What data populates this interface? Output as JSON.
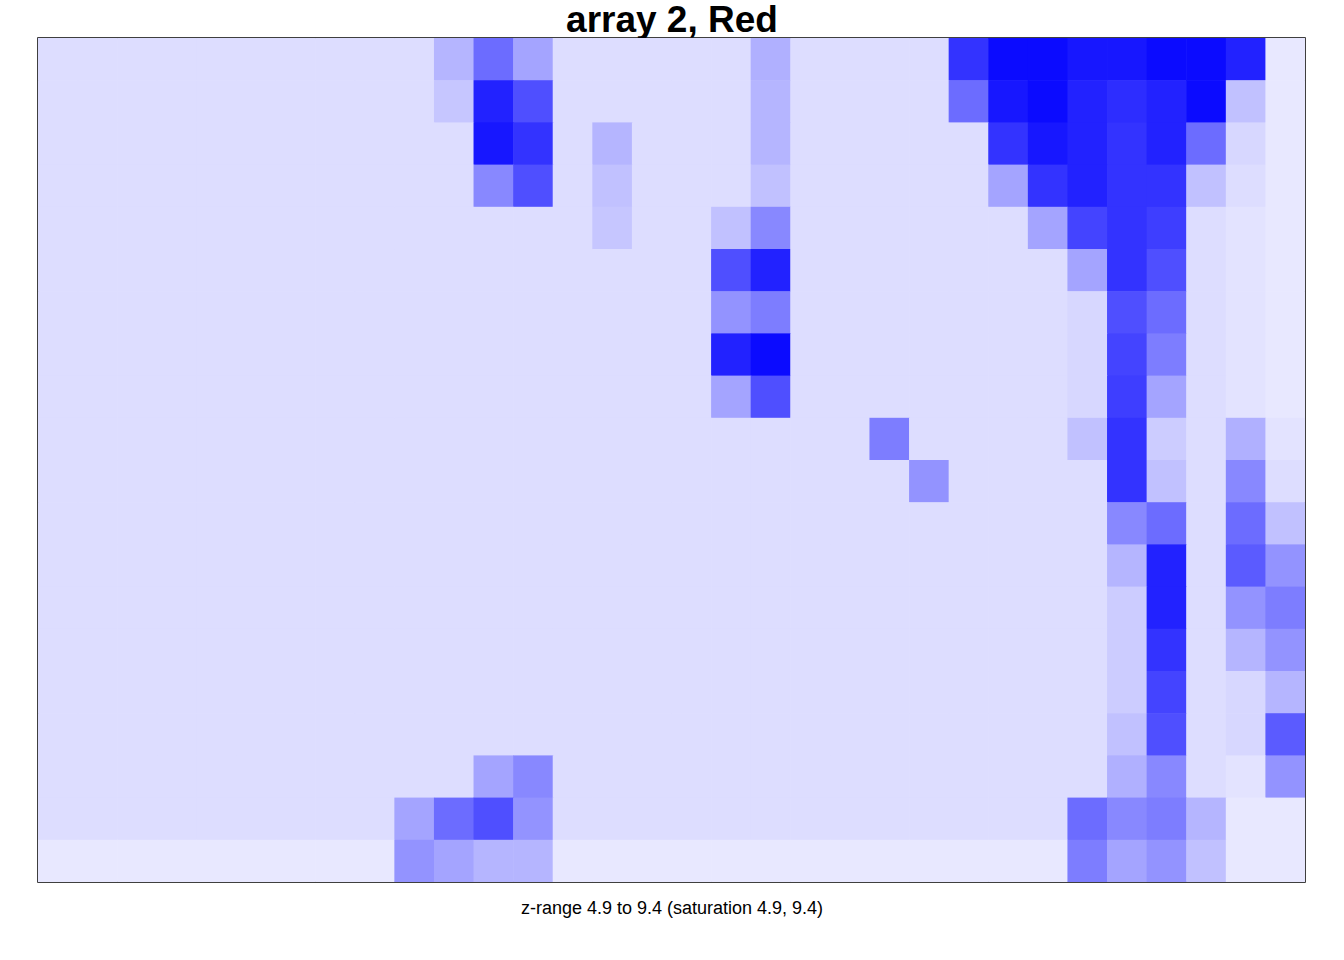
{
  "chart_data": {
    "type": "heatmap",
    "title": "array 2, Red",
    "subtitle": "z-range 4.9 to 9.4 (saturation 4.9, 9.4)",
    "zlim": [
      4.9,
      9.4
    ],
    "saturation": [
      4.9,
      9.4
    ],
    "colors": [
      "#ffffff",
      "#0000ff"
    ],
    "tick_labels": false,
    "cells": [
      [
        5.5,
        5.5,
        5.5,
        5.5,
        5.5,
        5.5,
        5.5,
        5.5,
        5.5,
        5.5,
        6.2,
        7.5,
        6.5,
        5.5,
        5.5,
        5.5,
        5.5,
        5.5,
        6.3,
        5.5,
        5.5,
        5.5,
        5.5,
        8.5,
        9.2,
        9.2,
        9.0,
        9.0,
        9.2,
        9.2,
        8.8,
        5.3
      ],
      [
        5.5,
        5.5,
        5.5,
        5.5,
        5.5,
        5.5,
        5.5,
        5.5,
        5.5,
        5.5,
        5.9,
        8.8,
        8.0,
        5.5,
        5.5,
        5.5,
        5.5,
        5.5,
        6.2,
        5.5,
        5.5,
        5.5,
        5.5,
        7.5,
        9.0,
        9.2,
        8.8,
        8.6,
        8.8,
        9.2,
        6.0,
        5.3
      ],
      [
        5.5,
        5.5,
        5.5,
        5.5,
        5.5,
        5.5,
        5.5,
        5.5,
        5.5,
        5.5,
        5.5,
        9.0,
        8.5,
        5.5,
        6.2,
        5.5,
        5.5,
        5.5,
        6.2,
        5.5,
        5.5,
        5.5,
        5.5,
        5.5,
        8.5,
        9.0,
        8.8,
        8.5,
        8.8,
        7.5,
        5.6,
        5.3
      ],
      [
        5.5,
        5.5,
        5.5,
        5.5,
        5.5,
        5.5,
        5.5,
        5.5,
        5.5,
        5.5,
        5.5,
        7.0,
        8.0,
        5.5,
        6.0,
        5.5,
        5.5,
        5.5,
        6.0,
        5.5,
        5.5,
        5.5,
        5.5,
        5.5,
        6.5,
        8.5,
        8.8,
        8.5,
        8.5,
        6.0,
        5.5,
        5.3
      ],
      [
        5.5,
        5.5,
        5.5,
        5.5,
        5.5,
        5.5,
        5.5,
        5.5,
        5.5,
        5.5,
        5.5,
        5.5,
        5.5,
        5.5,
        5.9,
        5.5,
        5.5,
        6.0,
        7.0,
        5.5,
        5.5,
        5.5,
        5.5,
        5.5,
        5.5,
        6.5,
        8.2,
        8.5,
        8.3,
        5.5,
        5.4,
        5.3
      ],
      [
        5.5,
        5.5,
        5.5,
        5.5,
        5.5,
        5.5,
        5.5,
        5.5,
        5.5,
        5.5,
        5.5,
        5.5,
        5.5,
        5.5,
        5.5,
        5.5,
        5.5,
        8.0,
        8.8,
        5.5,
        5.5,
        5.5,
        5.5,
        5.5,
        5.5,
        5.5,
        6.5,
        8.5,
        8.0,
        5.5,
        5.4,
        5.3
      ],
      [
        5.5,
        5.5,
        5.5,
        5.5,
        5.5,
        5.5,
        5.5,
        5.5,
        5.5,
        5.5,
        5.5,
        5.5,
        5.5,
        5.5,
        5.5,
        5.5,
        5.5,
        6.8,
        7.2,
        5.5,
        5.5,
        5.5,
        5.5,
        5.5,
        5.5,
        5.5,
        5.6,
        8.0,
        7.5,
        5.5,
        5.4,
        5.3
      ],
      [
        5.5,
        5.5,
        5.5,
        5.5,
        5.5,
        5.5,
        5.5,
        5.5,
        5.5,
        5.5,
        5.5,
        5.5,
        5.5,
        5.5,
        5.5,
        5.5,
        5.5,
        8.8,
        9.2,
        5.5,
        5.5,
        5.5,
        5.5,
        5.5,
        5.5,
        5.5,
        5.6,
        8.2,
        7.2,
        5.5,
        5.4,
        5.3
      ],
      [
        5.5,
        5.5,
        5.5,
        5.5,
        5.5,
        5.5,
        5.5,
        5.5,
        5.5,
        5.5,
        5.5,
        5.5,
        5.5,
        5.5,
        5.5,
        5.5,
        5.5,
        6.5,
        8.0,
        5.5,
        5.5,
        5.5,
        5.5,
        5.5,
        5.5,
        5.5,
        5.6,
        8.3,
        6.5,
        5.5,
        5.4,
        5.3
      ],
      [
        5.5,
        5.5,
        5.5,
        5.5,
        5.5,
        5.5,
        5.5,
        5.5,
        5.5,
        5.5,
        5.5,
        5.5,
        5.5,
        5.5,
        5.5,
        5.5,
        5.5,
        5.5,
        5.5,
        5.5,
        5.5,
        7.2,
        5.5,
        5.5,
        5.5,
        5.5,
        6.0,
        8.5,
        5.8,
        5.5,
        6.3,
        5.4
      ],
      [
        5.5,
        5.5,
        5.5,
        5.5,
        5.5,
        5.5,
        5.5,
        5.5,
        5.5,
        5.5,
        5.5,
        5.5,
        5.5,
        5.5,
        5.5,
        5.5,
        5.5,
        5.5,
        5.5,
        5.5,
        5.5,
        5.5,
        6.8,
        5.5,
        5.5,
        5.5,
        5.5,
        8.5,
        6.0,
        5.5,
        7.0,
        5.5
      ],
      [
        5.5,
        5.5,
        5.5,
        5.5,
        5.5,
        5.5,
        5.5,
        5.5,
        5.5,
        5.5,
        5.5,
        5.5,
        5.5,
        5.5,
        5.5,
        5.5,
        5.5,
        5.5,
        5.5,
        5.5,
        5.5,
        5.5,
        5.5,
        5.5,
        5.5,
        5.5,
        5.5,
        7.0,
        7.5,
        5.5,
        7.5,
        6.0
      ],
      [
        5.5,
        5.5,
        5.5,
        5.5,
        5.5,
        5.5,
        5.5,
        5.5,
        5.5,
        5.5,
        5.5,
        5.5,
        5.5,
        5.5,
        5.5,
        5.5,
        5.5,
        5.5,
        5.5,
        5.5,
        5.5,
        5.5,
        5.5,
        5.5,
        5.5,
        5.5,
        5.5,
        6.2,
        8.8,
        5.5,
        7.8,
        6.8
      ],
      [
        5.5,
        5.5,
        5.5,
        5.5,
        5.5,
        5.5,
        5.5,
        5.5,
        5.5,
        5.5,
        5.5,
        5.5,
        5.5,
        5.5,
        5.5,
        5.5,
        5.5,
        5.5,
        5.5,
        5.5,
        5.5,
        5.5,
        5.5,
        5.5,
        5.5,
        5.5,
        5.5,
        5.8,
        8.8,
        5.5,
        6.8,
        7.2
      ],
      [
        5.5,
        5.5,
        5.5,
        5.5,
        5.5,
        5.5,
        5.5,
        5.5,
        5.5,
        5.5,
        5.5,
        5.5,
        5.5,
        5.5,
        5.5,
        5.5,
        5.5,
        5.5,
        5.5,
        5.5,
        5.5,
        5.5,
        5.5,
        5.5,
        5.5,
        5.5,
        5.5,
        5.8,
        8.5,
        5.5,
        6.2,
        6.8
      ],
      [
        5.5,
        5.5,
        5.5,
        5.5,
        5.5,
        5.5,
        5.5,
        5.5,
        5.5,
        5.5,
        5.5,
        5.5,
        5.5,
        5.5,
        5.5,
        5.5,
        5.5,
        5.5,
        5.5,
        5.5,
        5.5,
        5.5,
        5.5,
        5.5,
        5.5,
        5.5,
        5.5,
        5.8,
        8.2,
        5.5,
        5.6,
        6.2
      ],
      [
        5.5,
        5.5,
        5.5,
        5.5,
        5.5,
        5.5,
        5.5,
        5.5,
        5.5,
        5.5,
        5.5,
        5.5,
        5.5,
        5.5,
        5.5,
        5.5,
        5.5,
        5.5,
        5.5,
        5.5,
        5.5,
        5.5,
        5.5,
        5.5,
        5.5,
        5.5,
        5.5,
        6.0,
        8.0,
        5.5,
        5.6,
        7.8
      ],
      [
        5.5,
        5.5,
        5.5,
        5.5,
        5.5,
        5.5,
        5.5,
        5.5,
        5.5,
        5.5,
        5.5,
        6.5,
        7.0,
        5.5,
        5.5,
        5.5,
        5.5,
        5.5,
        5.5,
        5.5,
        5.5,
        5.5,
        5.5,
        5.5,
        5.5,
        5.5,
        5.5,
        6.3,
        7.0,
        5.5,
        5.4,
        6.8
      ],
      [
        5.5,
        5.5,
        5.5,
        5.5,
        5.5,
        5.5,
        5.5,
        5.5,
        5.5,
        6.5,
        7.5,
        8.0,
        6.8,
        5.5,
        5.5,
        5.5,
        5.5,
        5.5,
        5.5,
        5.5,
        5.5,
        5.5,
        5.5,
        5.5,
        5.5,
        5.5,
        7.5,
        7.0,
        7.2,
        6.2,
        5.3,
        5.3
      ],
      [
        5.3,
        5.3,
        5.3,
        5.3,
        5.3,
        5.3,
        5.3,
        5.3,
        5.3,
        6.8,
        6.5,
        6.2,
        6.2,
        5.3,
        5.3,
        5.3,
        5.3,
        5.3,
        5.3,
        5.3,
        5.3,
        5.3,
        5.3,
        5.3,
        5.3,
        5.3,
        7.2,
        6.5,
        6.8,
        6.0,
        5.3,
        5.3
      ]
    ]
  }
}
